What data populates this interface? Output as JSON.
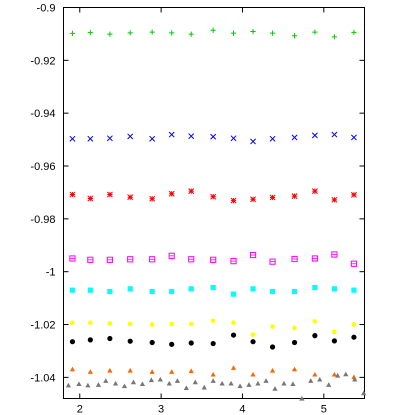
{
  "chart_data": {
    "type": "scatter",
    "title": "",
    "xlabel": "",
    "ylabel": "",
    "xlim": [
      1.8,
      5.5
    ],
    "ylim": [
      -1.048,
      -0.9
    ],
    "xticks": [
      2,
      3,
      4,
      5
    ],
    "xtick_labels": [
      "2",
      "3",
      "4",
      "5"
    ],
    "yticks": [
      -0.9,
      -0.92,
      -0.94,
      -0.96,
      -0.98,
      -1,
      -1.02,
      -1.04
    ],
    "ytick_labels": [
      "-0.9",
      "-0.92",
      "-0.94",
      "-0.96",
      "-0.98",
      "-1",
      "-1.02",
      "-1.04"
    ],
    "grid": false,
    "x": [
      1.91,
      2.13,
      2.37,
      2.62,
      2.89,
      3.13,
      3.37,
      3.64,
      3.89,
      4.13,
      4.37,
      4.64,
      4.89,
      5.13,
      5.37
    ],
    "series": [
      {
        "marker": "plus",
        "color": "#00cc00",
        "values": [
          -0.9098,
          -0.9095,
          -0.9101,
          -0.9096,
          -0.9093,
          -0.9096,
          -0.9101,
          -0.9086,
          -0.9097,
          -0.9091,
          -0.9097,
          -0.9107,
          -0.9093,
          -0.9111,
          -0.9094
        ]
      },
      {
        "marker": "x",
        "color": "#0000ff",
        "values": [
          -0.9497,
          -0.9497,
          -0.9495,
          -0.9488,
          -0.9497,
          -0.9481,
          -0.9487,
          -0.9489,
          -0.9495,
          -0.9507,
          -0.9497,
          -0.9492,
          -0.9484,
          -0.9481,
          -0.9492
        ]
      },
      {
        "marker": "star",
        "color": "#ff0000",
        "values": [
          -0.9708,
          -0.9723,
          -0.9708,
          -0.9718,
          -0.9724,
          -0.9705,
          -0.9695,
          -0.9716,
          -0.9731,
          -0.9726,
          -0.9719,
          -0.9714,
          -0.9695,
          -0.9728,
          -0.9709
        ]
      },
      {
        "marker": "square-open",
        "color": "#ff00ff",
        "values": [
          -0.995,
          -0.9955,
          -0.9955,
          -0.9953,
          -0.9953,
          -0.994,
          -0.9953,
          -0.9955,
          -0.996,
          -0.9937,
          -0.9962,
          -0.9952,
          -0.995,
          -0.9935,
          -0.997
        ]
      },
      {
        "marker": "square-filled",
        "color": "#00ffff",
        "values": [
          -1.007,
          -1.007,
          -1.0075,
          -1.0065,
          -1.0075,
          -1.0075,
          -1.0065,
          -1.006,
          -1.0085,
          -1.0065,
          -1.0075,
          -1.0075,
          -1.006,
          -1.0065,
          -1.007
        ]
      },
      {
        "marker": "circle-open",
        "color": "#ffff00",
        "values": [
          -1.0193,
          -1.0193,
          -1.0196,
          -1.0198,
          -1.02,
          -1.0198,
          -1.0198,
          -1.0186,
          -1.0193,
          -1.0238,
          -1.0208,
          -1.0213,
          -1.0188,
          -1.0228,
          -1.02
        ]
      },
      {
        "marker": "circle-filled",
        "color": "#000000",
        "values": [
          -1.0265,
          -1.0258,
          -1.0253,
          -1.0263,
          -1.0268,
          -1.0275,
          -1.027,
          -1.0272,
          -1.024,
          -1.0265,
          -1.0285,
          -1.0268,
          -1.0242,
          -1.0262,
          -1.0248
        ]
      },
      {
        "marker": "triangle",
        "color": "#ff6600",
        "values": [
          -1.0369,
          -1.0379,
          -1.0374,
          -1.0374,
          -1.0379,
          -1.0379,
          -1.0376,
          -1.0389,
          -1.0364,
          -1.0389,
          -1.0374,
          -1.0369,
          -1.0389,
          -1.0389,
          -1.0399
        ]
      },
      {
        "marker": "triangle",
        "color": "#777777",
        "x": [
          1.86,
          1.99,
          2.1,
          2.23,
          2.32,
          2.44,
          2.55,
          2.66,
          2.77,
          2.88,
          2.99,
          3.1,
          3.2,
          3.31,
          3.42,
          3.53,
          3.64,
          3.75,
          3.86,
          3.97,
          4.08,
          4.19,
          4.29,
          4.4,
          4.51,
          4.62,
          4.73,
          4.84,
          4.95,
          5.06,
          5.17,
          5.27,
          5.38,
          5.49
        ],
        "values": [
          -1.043,
          -1.0425,
          -1.043,
          -1.0428,
          -1.0413,
          -1.0423,
          -1.0433,
          -1.0418,
          -1.0425,
          -1.041,
          -1.0408,
          -1.0423,
          -1.0413,
          -1.044,
          -1.0418,
          -1.0438,
          -1.0413,
          -1.0423,
          -1.0423,
          -1.0433,
          -1.0428,
          -1.0423,
          -1.0413,
          -1.0443,
          -1.0423,
          -1.0425,
          -1.048,
          -1.0413,
          -1.0408,
          -1.0428,
          -1.0393,
          -1.0388,
          -1.0408,
          -1.046
        ]
      }
    ]
  }
}
